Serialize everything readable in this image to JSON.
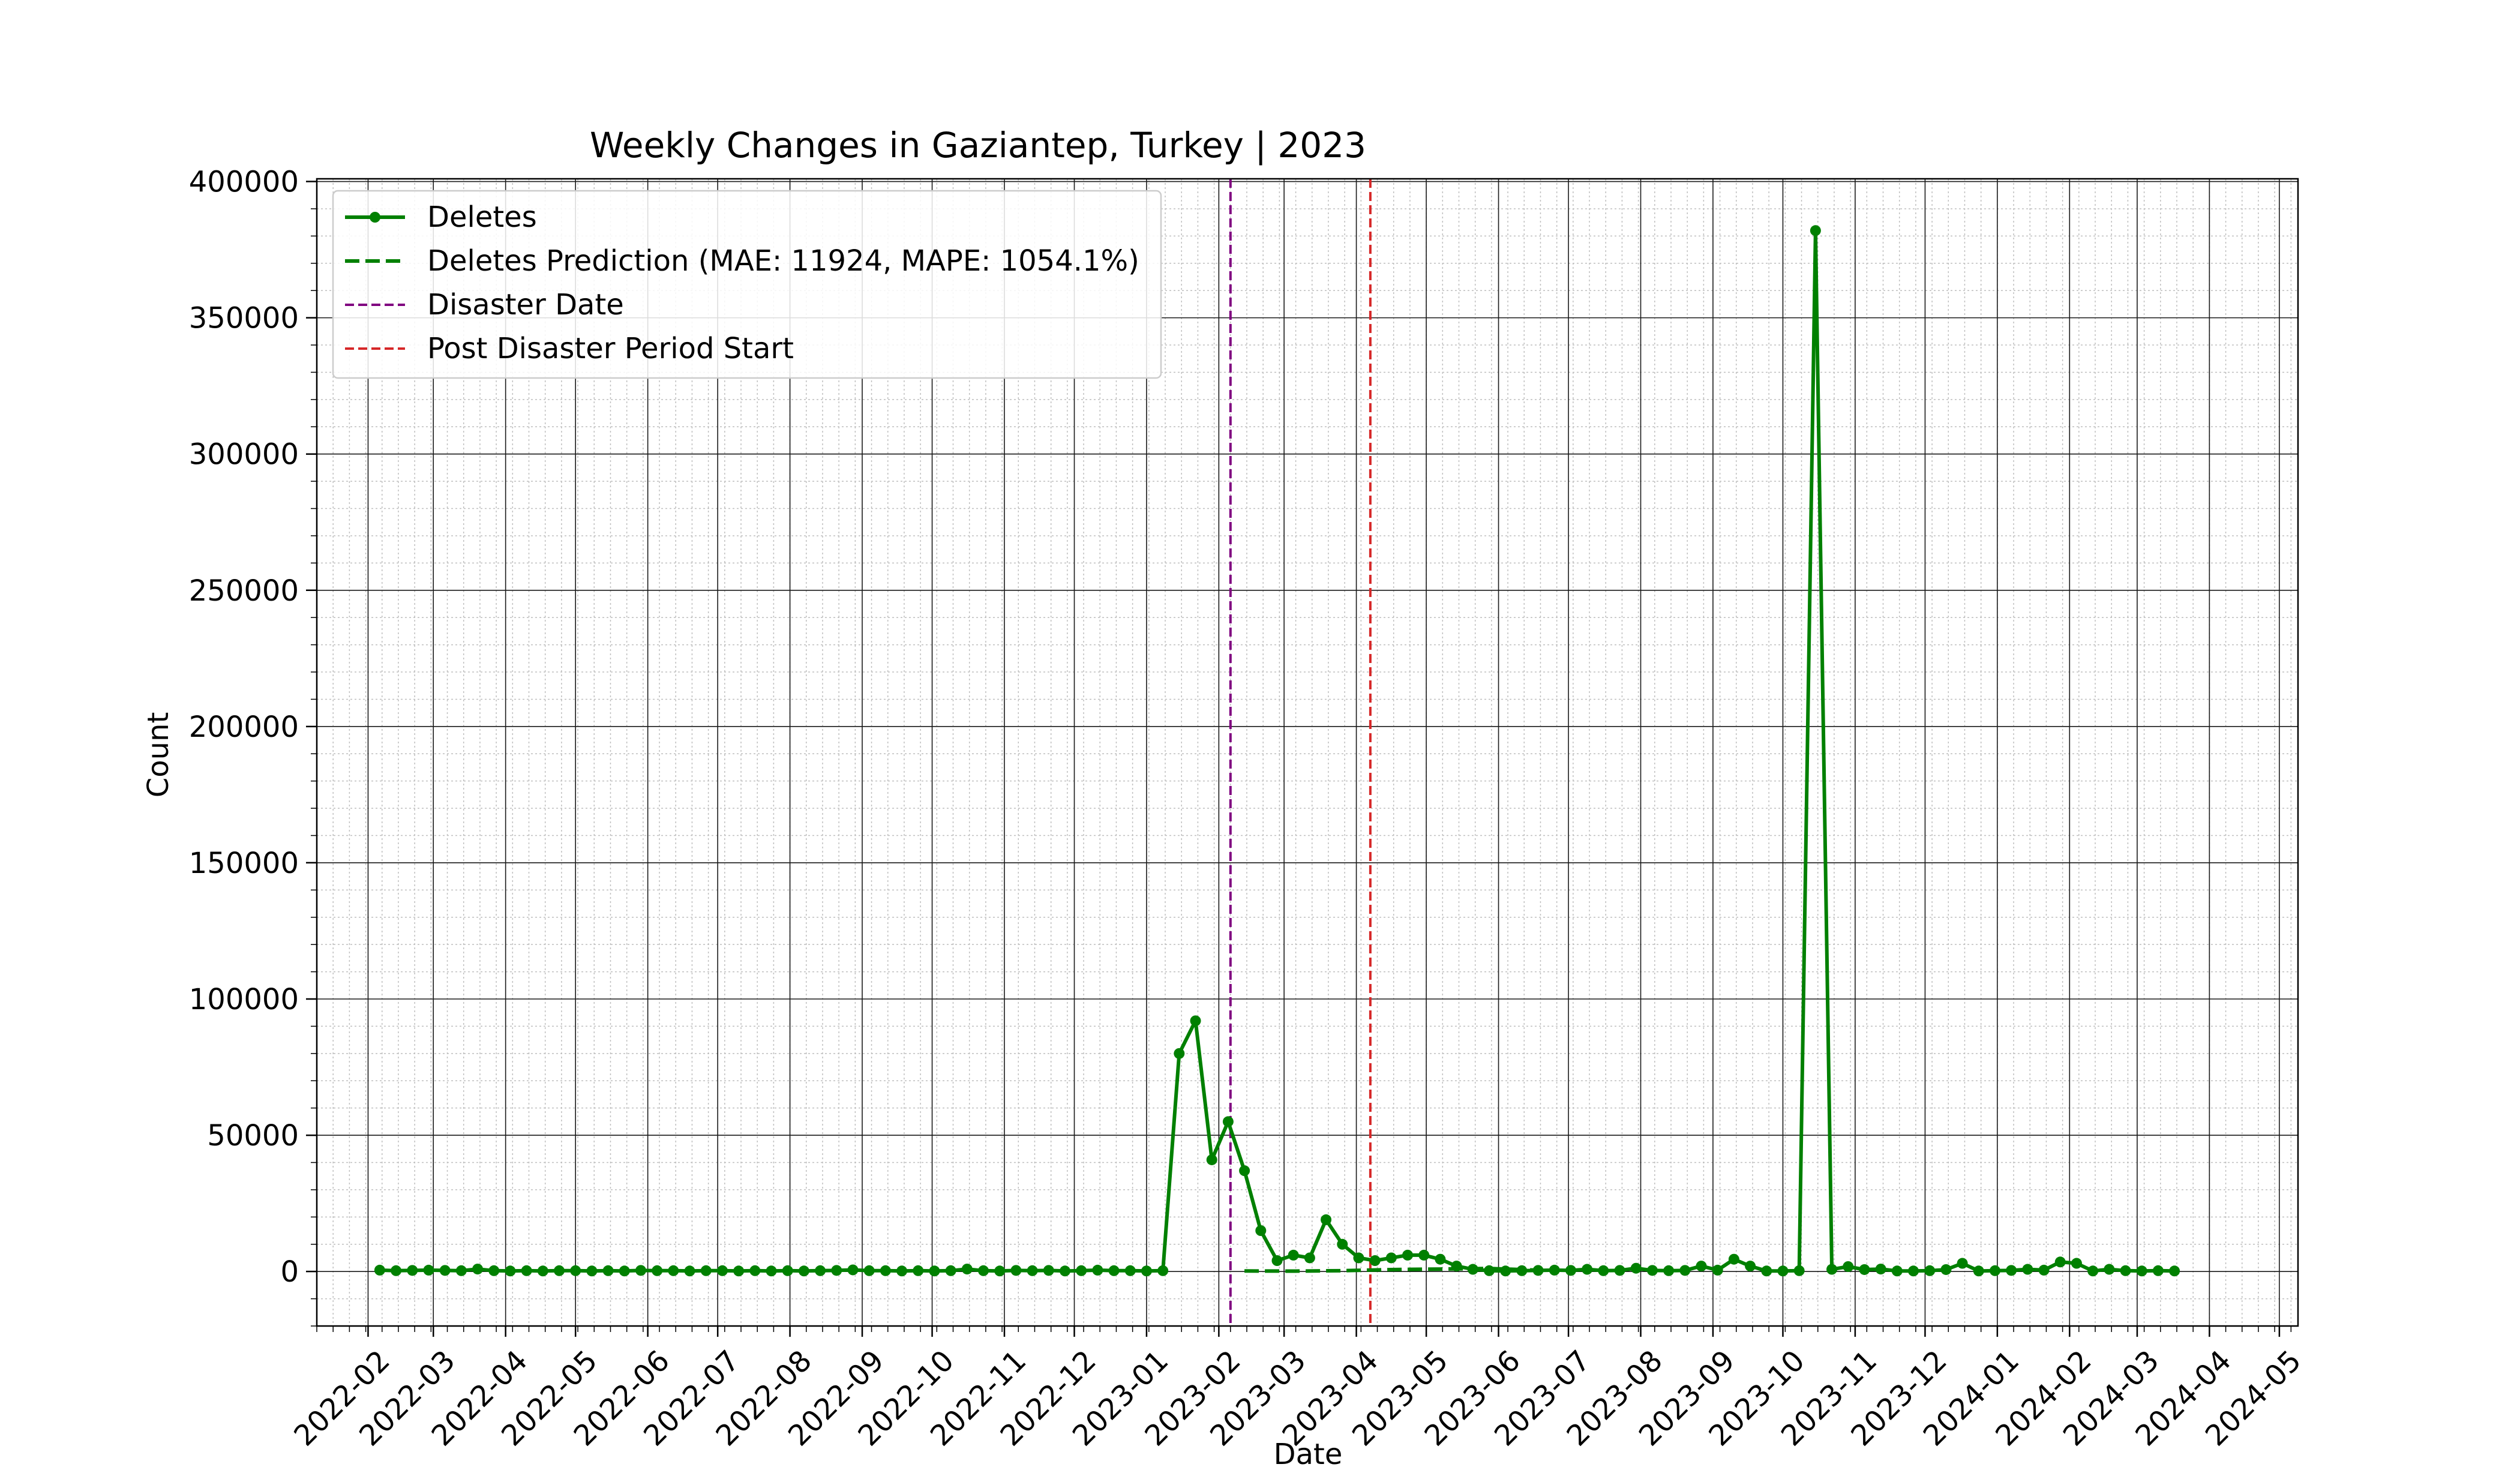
{
  "chart_data": {
    "type": "line",
    "title": "Weekly Changes in Gaziantep, Turkey | 2023",
    "xlabel": "Date",
    "ylabel": "Count",
    "x_axis": "date",
    "xlim": [
      "2022-01-10",
      "2024-05-09"
    ],
    "ylim": [
      -20000,
      401000
    ],
    "y_ticks": [
      0,
      50000,
      100000,
      150000,
      200000,
      250000,
      300000,
      350000,
      400000
    ],
    "x_ticks": [
      "2022-02",
      "2022-03",
      "2022-04",
      "2022-05",
      "2022-06",
      "2022-07",
      "2022-08",
      "2022-09",
      "2022-10",
      "2022-11",
      "2022-12",
      "2023-01",
      "2023-02",
      "2023-03",
      "2023-04",
      "2023-05",
      "2023-06",
      "2023-07",
      "2023-08",
      "2023-09",
      "2023-10",
      "2023-11",
      "2023-12",
      "2024-01",
      "2024-02",
      "2024-03",
      "2024-04",
      "2024-05"
    ],
    "grid": true,
    "legend": "top-left",
    "colors": {
      "deletes": "#008000",
      "prediction": "#008000",
      "disaster": "#800080",
      "post_disaster": "#d62728"
    },
    "series": [
      {
        "name": "Deletes",
        "style": "solid-markers",
        "start": "2022-02-06",
        "interval_days": 7,
        "values": [
          500,
          300,
          400,
          500,
          400,
          300,
          900,
          300,
          200,
          300,
          200,
          300,
          300,
          200,
          300,
          200,
          400,
          300,
          300,
          200,
          300,
          300,
          200,
          300,
          200,
          300,
          200,
          300,
          400,
          600,
          300,
          300,
          200,
          300,
          200,
          300,
          900,
          300,
          200,
          400,
          300,
          400,
          200,
          300,
          500,
          300,
          300,
          200,
          300,
          80000,
          92000,
          41000,
          55000,
          37000,
          15000,
          4000,
          6000,
          5000,
          19000,
          10000,
          5000,
          4000,
          5000,
          6000,
          6000,
          4500,
          2000,
          800,
          300,
          200,
          300,
          400,
          500,
          400,
          800,
          300,
          400,
          1200,
          400,
          300,
          400,
          2000,
          500,
          4500,
          2000,
          200,
          200,
          300,
          382000,
          800,
          1800,
          700,
          900,
          200,
          200,
          300,
          700,
          3000,
          200,
          300,
          400,
          800,
          500,
          3500,
          3000,
          200,
          800,
          300,
          200,
          300,
          200
        ]
      },
      {
        "name": "Deletes Prediction (MAE: 11924, MAPE: 1054.1%)",
        "style": "dashed",
        "x": [
          "2023-02-12",
          "2023-03-05",
          "2023-03-26",
          "2023-04-16",
          "2023-05-07",
          "2023-05-28",
          "2023-06-18"
        ],
        "values": [
          200,
          150,
          300,
          700,
          900,
          1100,
          500
        ]
      }
    ],
    "vlines": [
      {
        "name": "Disaster Date",
        "x": "2023-02-06",
        "color": "#800080",
        "style": "dashed"
      },
      {
        "name": "Post Disaster Period Start",
        "x": "2023-04-07",
        "color": "#d62728",
        "style": "dashed"
      }
    ]
  }
}
